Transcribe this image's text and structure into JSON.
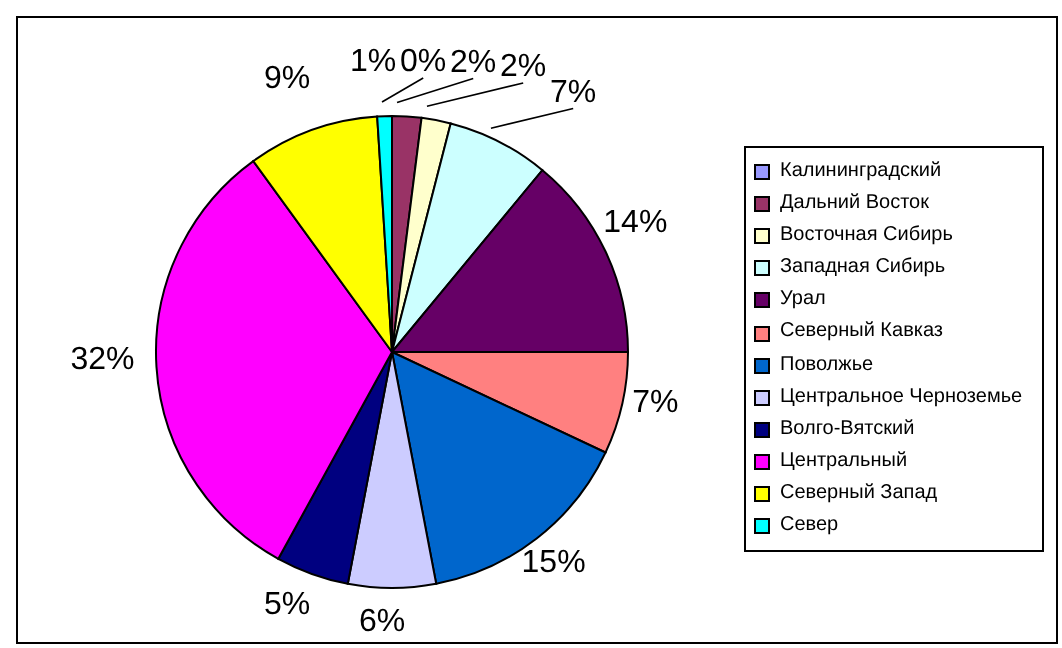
{
  "chart_data": {
    "type": "pie",
    "categories": [
      "Калининградский",
      "Дальний Восток",
      "Восточная Сибирь",
      "Западная Сибирь",
      "Урал",
      "Северный Кавказ",
      "Поволжье",
      "Центральное Черноземье",
      "Волго-Вятский",
      "Центральный",
      "Северный Запад",
      "Север"
    ],
    "values": [
      0,
      2,
      2,
      7,
      14,
      7,
      15,
      6,
      5,
      32,
      9,
      1
    ],
    "value_labels": [
      "0%",
      "2%",
      "2%",
      "7%",
      "14%",
      "7%",
      "15%",
      "6%",
      "5%",
      "32%",
      "9%",
      "1%"
    ],
    "colors": [
      "#9999ff",
      "#993366",
      "#ffffcc",
      "#ccffff",
      "#660066",
      "#ff8080",
      "#0066cc",
      "#ccccff",
      "#000080",
      "#ff00ff",
      "#ffff00",
      "#00ffff"
    ],
    "legend": "right"
  }
}
